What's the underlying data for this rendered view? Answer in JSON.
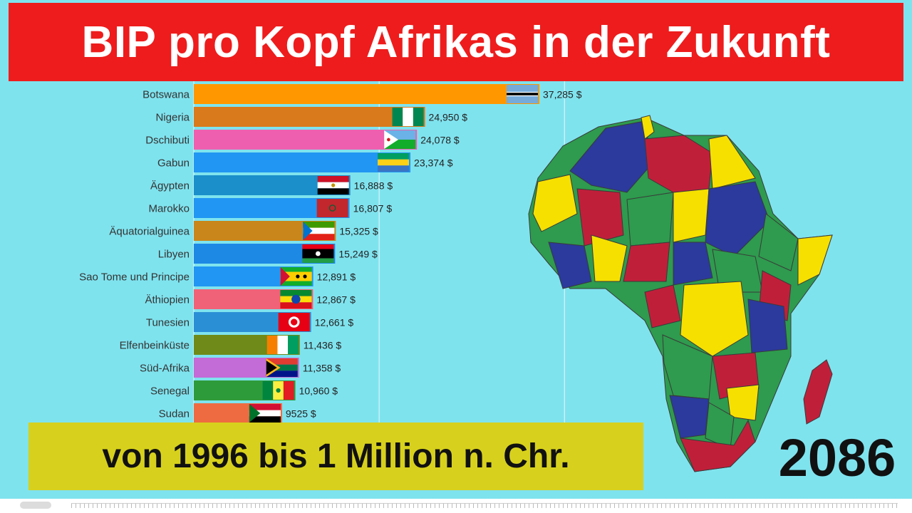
{
  "title": "BIP pro Kopf Afrikas in der Zukunft",
  "subtitle": "von 1996 bis 1 Million n. Chr.",
  "year": "2086",
  "colors": {
    "background": "#7fe3ee",
    "title_band": "#ee1c1c",
    "subtitle_box": "#d7d11d"
  },
  "chart_data": {
    "type": "bar",
    "orientation": "horizontal",
    "value_suffix": " $",
    "grid": true,
    "categories": [
      "Botswana",
      "Nigeria",
      "Dschibuti",
      "Gabun",
      "Ägypten",
      "Marokko",
      "Äquatorialguinea",
      "Libyen",
      "Sao Tome und Principe",
      "Äthiopien",
      "Tunesien",
      "Elfenbeinküste",
      "Süd-Afrika",
      "Senegal",
      "Sudan"
    ],
    "values": [
      37285,
      24950,
      24078,
      23374,
      16888,
      16807,
      15325,
      15249,
      12891,
      12867,
      12661,
      11436,
      11358,
      10960,
      9525
    ],
    "value_labels": [
      "37,285 $",
      "24,950 $",
      "24,078 $",
      "23,374 $",
      "16,888 $",
      "16,807 $",
      "15,325 $",
      "15,249 $",
      "12,891 $",
      "12,867 $",
      "12,661 $",
      "11,436 $",
      "11,358 $",
      "10,960 $",
      "9525 $"
    ],
    "bar_colors": [
      "#ff9800",
      "#d97a1c",
      "#ee5faf",
      "#2196f3",
      "#1a8fc9",
      "#2196f3",
      "#c9861a",
      "#1e88e5",
      "#2196f3",
      "#f06277",
      "#2b8fd6",
      "#6f8a18",
      "#c36bd6",
      "#2e9b3a",
      "#ee6b41"
    ],
    "flag_icons": [
      "botswana-flag",
      "nigeria-flag",
      "djibouti-flag",
      "gabon-flag",
      "egypt-flag",
      "morocco-flag",
      "equatorial-guinea-flag",
      "libya-flag",
      "sao-tome-flag",
      "ethiopia-flag",
      "tunisia-flag",
      "ivory-coast-flag",
      "south-africa-flag",
      "senegal-flag",
      "sudan-flag"
    ],
    "map_icon": "africa-map-icon"
  }
}
